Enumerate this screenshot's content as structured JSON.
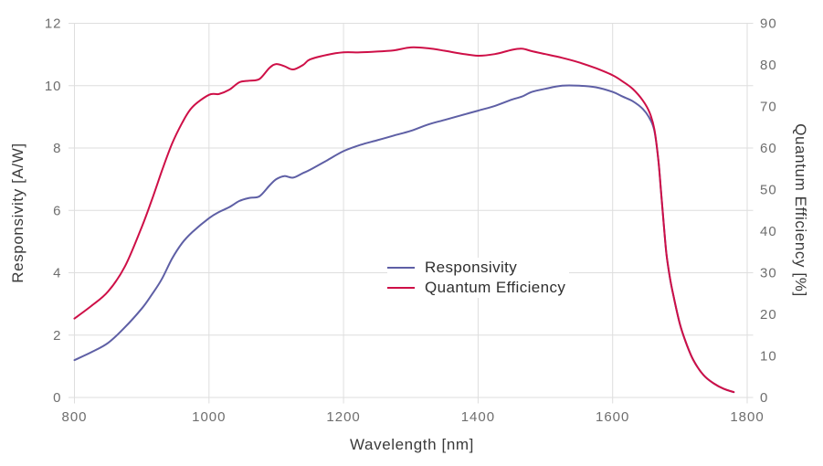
{
  "chart_data": {
    "type": "line",
    "xlabel": "Wavelength [nm]",
    "ylabel_left": "Responsivity [A/W]",
    "ylabel_right": "Quantum Efficiency [%]",
    "x_range": [
      800,
      1800
    ],
    "y_left_range": [
      0,
      12
    ],
    "y_right_range": [
      0,
      90
    ],
    "x_ticks": [
      800,
      1000,
      1200,
      1400,
      1600,
      1800
    ],
    "y_left_ticks": [
      0,
      2,
      4,
      6,
      8,
      10,
      12
    ],
    "y_right_ticks": [
      0,
      10,
      20,
      30,
      40,
      50,
      60,
      70,
      80,
      90
    ],
    "grid": true,
    "legend_position": "center",
    "colors": {
      "grid": "#dedede",
      "tick_label": "#6e6e6e",
      "axis_title": "#3a3a3a"
    },
    "x": [
      800,
      825,
      850,
      875,
      900,
      915,
      930,
      945,
      960,
      975,
      1000,
      1015,
      1030,
      1045,
      1060,
      1075,
      1090,
      1100,
      1112,
      1125,
      1140,
      1150,
      1175,
      1200,
      1225,
      1250,
      1275,
      1300,
      1325,
      1350,
      1375,
      1400,
      1425,
      1450,
      1465,
      1480,
      1500,
      1525,
      1550,
      1575,
      1600,
      1615,
      1630,
      1645,
      1655,
      1662,
      1668,
      1672,
      1676,
      1680,
      1685,
      1690,
      1700,
      1710,
      1720,
      1735,
      1750,
      1765,
      1780
    ],
    "series": [
      {
        "name": "Responsivity",
        "axis": "left",
        "unit": "A/W",
        "color": "#5e5fa5",
        "values": [
          1.2,
          1.45,
          1.75,
          2.25,
          2.85,
          3.3,
          3.8,
          4.45,
          4.95,
          5.3,
          5.75,
          5.95,
          6.1,
          6.3,
          6.4,
          6.45,
          6.8,
          7.0,
          7.1,
          7.05,
          7.2,
          7.3,
          7.6,
          7.9,
          8.1,
          8.25,
          8.4,
          8.55,
          8.75,
          8.9,
          9.05,
          9.2,
          9.35,
          9.55,
          9.65,
          9.8,
          9.9,
          10.0,
          10.0,
          9.95,
          9.8,
          9.65,
          9.5,
          9.25,
          8.95,
          8.55,
          7.6,
          6.6,
          5.55,
          4.6,
          3.85,
          3.3,
          2.35,
          1.7,
          1.2,
          0.72,
          0.45,
          0.28,
          0.17
        ]
      },
      {
        "name": "Quantum Efficiency",
        "axis": "right",
        "unit": "%",
        "color": "#ce0f47",
        "values": [
          19.0,
          22.0,
          25.5,
          31.5,
          41.0,
          47.5,
          54.5,
          61.0,
          66.0,
          69.8,
          72.8,
          73.0,
          74.0,
          75.8,
          76.2,
          76.6,
          79.3,
          80.2,
          79.7,
          78.9,
          80.0,
          81.3,
          82.4,
          83.0,
          83.0,
          83.2,
          83.5,
          84.2,
          84.0,
          83.4,
          82.7,
          82.2,
          82.6,
          83.6,
          83.9,
          83.3,
          82.6,
          81.7,
          80.6,
          79.2,
          77.5,
          76.0,
          74.2,
          71.4,
          68.5,
          64.5,
          57.0,
          49.5,
          41.5,
          34.5,
          29.0,
          24.8,
          17.6,
          12.8,
          9.0,
          5.4,
          3.4,
          2.1,
          1.3
        ]
      }
    ],
    "legend": {
      "items": [
        {
          "label": "Responsivity"
        },
        {
          "label": "Quantum Efficiency"
        }
      ]
    }
  }
}
